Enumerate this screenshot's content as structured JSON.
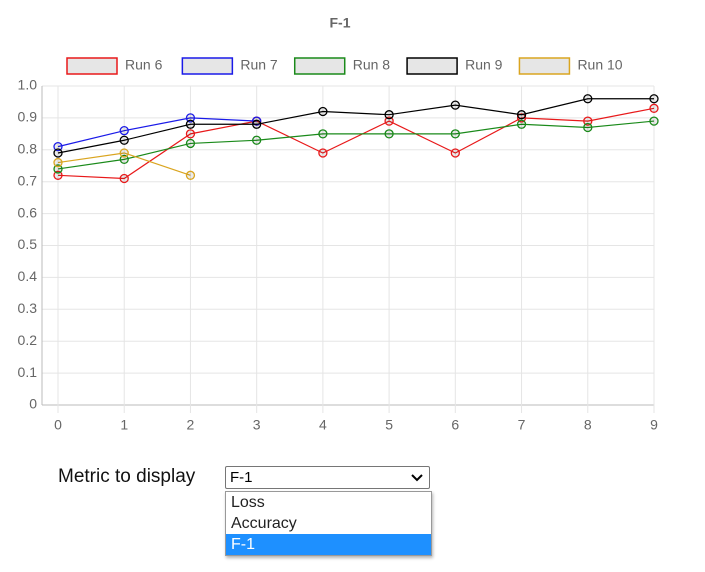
{
  "chart_data": {
    "type": "line",
    "title": "F-1",
    "x": [
      0,
      1,
      2,
      3,
      4,
      5,
      6,
      7,
      8,
      9
    ],
    "xlim": [
      0,
      9
    ],
    "xticks": [
      0,
      1,
      2,
      3,
      4,
      5,
      6,
      7,
      8,
      9
    ],
    "ylim": [
      0,
      1
    ],
    "yticks": [
      0,
      0.1,
      0.2,
      0.3,
      0.4,
      0.5,
      0.6,
      0.7,
      0.8,
      0.9,
      {
        "value": 1,
        "label": "1.0"
      }
    ],
    "grid": true,
    "legend": "top",
    "series": [
      {
        "name": "Run 6",
        "color": "#e8191a",
        "values": [
          0.72,
          0.71,
          0.85,
          0.89,
          0.79,
          0.89,
          0.79,
          0.9,
          0.89,
          0.93
        ]
      },
      {
        "name": "Run 7",
        "color": "#1a1ae8",
        "values": [
          0.81,
          0.86,
          0.9,
          0.89,
          null,
          null,
          null,
          null,
          null,
          null
        ]
      },
      {
        "name": "Run 8",
        "color": "#1a8a1a",
        "values": [
          0.74,
          0.77,
          0.82,
          0.83,
          0.85,
          0.85,
          0.85,
          0.88,
          0.87,
          0.89
        ]
      },
      {
        "name": "Run 9",
        "color": "#000000",
        "values": [
          0.79,
          0.83,
          0.88,
          0.88,
          0.92,
          0.91,
          0.94,
          0.91,
          0.96,
          0.96
        ]
      },
      {
        "name": "Run 10",
        "color": "#daa520",
        "values": [
          0.76,
          0.79,
          0.72,
          null,
          null,
          null,
          null,
          null,
          null,
          null
        ]
      }
    ]
  },
  "controls": {
    "label": "Metric to display",
    "selected": "F-1",
    "options": [
      "Loss",
      "Accuracy",
      "F-1"
    ]
  }
}
